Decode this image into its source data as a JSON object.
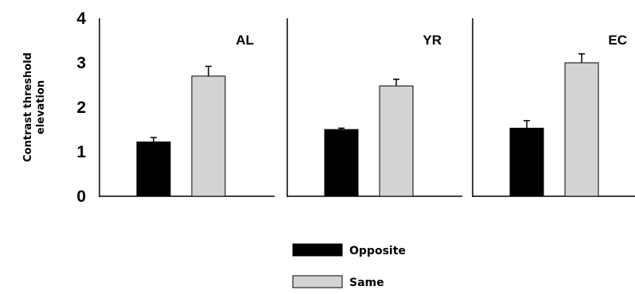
{
  "chart_data": {
    "type": "bar",
    "ylabel_line1": "Contrast threshold",
    "ylabel_line2": "elevation",
    "ylim": [
      0,
      4
    ],
    "yticks": [
      "0",
      "1",
      "2",
      "3",
      "4"
    ],
    "grid": false,
    "legend_position": "bottom-center",
    "series": [
      {
        "name": "Opposite",
        "color": "#000000"
      },
      {
        "name": "Same",
        "color": "#d3d3d3"
      }
    ],
    "panels": [
      {
        "label": "AL",
        "values": [
          1.22,
          2.7
        ],
        "errors": [
          0.1,
          0.22
        ]
      },
      {
        "label": "YR",
        "values": [
          1.5,
          2.48
        ],
        "errors": [
          0.03,
          0.15
        ]
      },
      {
        "label": "EC",
        "values": [
          1.53,
          3.0
        ],
        "errors": [
          0.17,
          0.2
        ]
      }
    ]
  }
}
